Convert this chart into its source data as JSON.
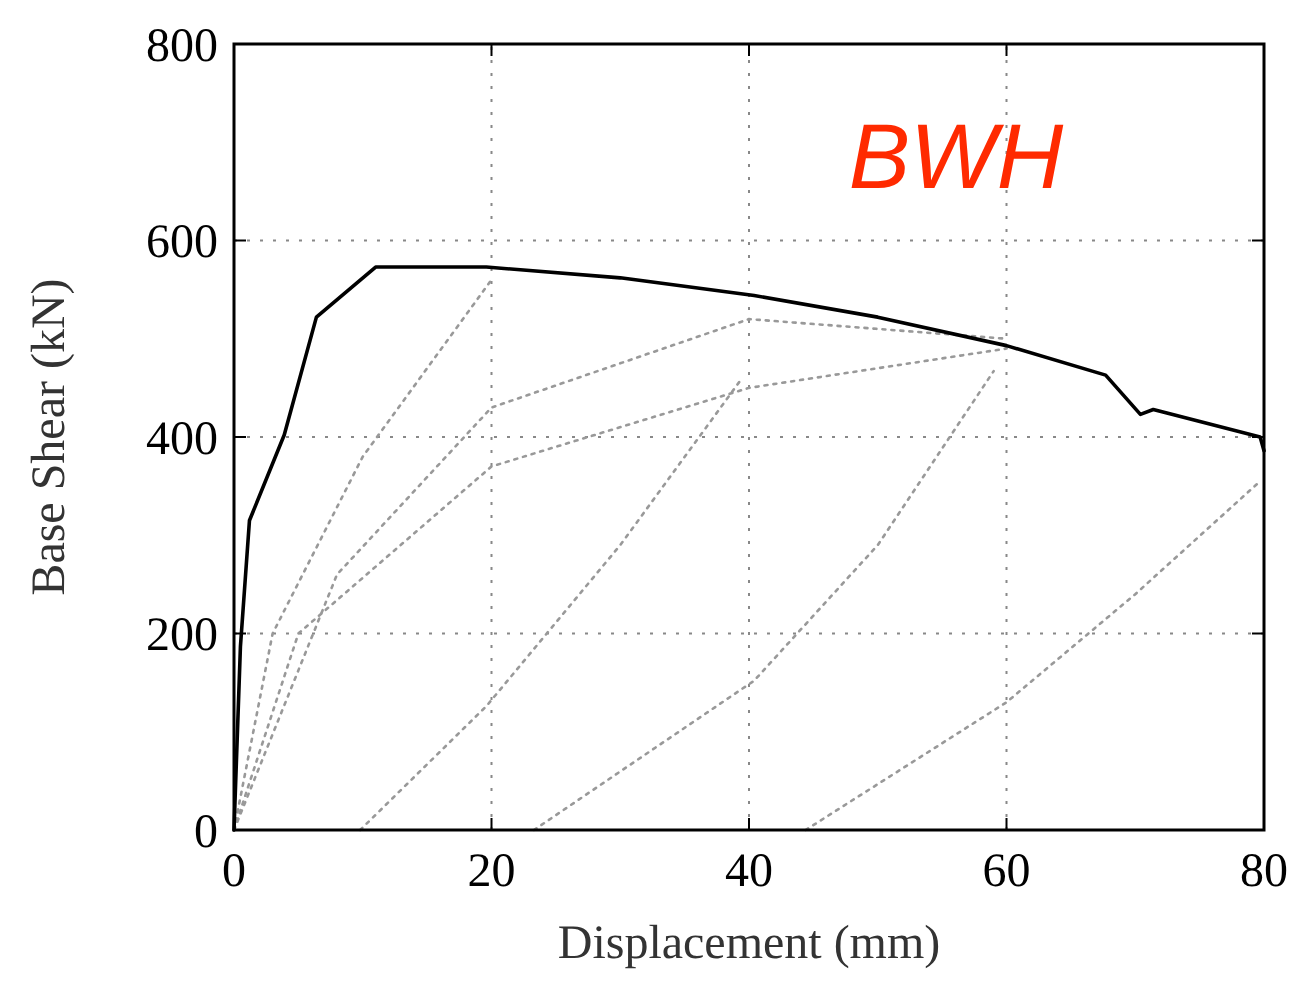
{
  "chart_data": {
    "type": "line",
    "xlabel": "Displacement (mm)",
    "ylabel": "Base Shear (kN)",
    "xlim": [
      0,
      80
    ],
    "ylim": [
      0,
      800
    ],
    "xticks": [
      0,
      20,
      40,
      60,
      80
    ],
    "yticks": [
      0,
      200,
      400,
      600,
      800
    ],
    "grid": true,
    "annotations": [
      "BWH"
    ],
    "series": [
      {
        "color": "#999999",
        "line_style": "dotted",
        "x": [
          0,
          3,
          10,
          20
        ],
        "values": [
          0,
          200,
          380,
          560
        ]
      },
      {
        "color": "#999999",
        "line_style": "dotted",
        "x": [
          0,
          5,
          20,
          40,
          60
        ],
        "values": [
          0,
          200,
          370,
          450,
          490
        ]
      },
      {
        "color": "#999999",
        "line_style": "dotted",
        "x": [
          0,
          8,
          20,
          40,
          60
        ],
        "values": [
          0,
          260,
          430,
          520,
          500
        ]
      },
      {
        "color": "#999999",
        "line_style": "dotted",
        "x": [
          9.8,
          19.6,
          30,
          39.3
        ],
        "values": [
          0,
          126,
          290,
          457
        ]
      },
      {
        "color": "#999999",
        "line_style": "dotted",
        "x": [
          23.3,
          40.4,
          50,
          59
        ],
        "values": [
          0,
          152,
          290,
          467
        ]
      },
      {
        "color": "#999999",
        "line_style": "dotted",
        "x": [
          44.4,
          60,
          70,
          79.7
        ],
        "values": [
          0,
          130,
          240,
          355
        ]
      },
      {
        "color": "#000000",
        "line_style": "solid",
        "x": [
          0,
          0.5,
          1.2,
          3.9,
          6.4,
          11,
          19.6,
          30,
          40.4,
          50,
          60,
          67.7,
          70.4,
          71.4,
          79.7,
          80
        ],
        "values": [
          0,
          187,
          315,
          402,
          522,
          573,
          573,
          562,
          544,
          522,
          493,
          463,
          423,
          428,
          400,
          386
        ]
      }
    ]
  }
}
